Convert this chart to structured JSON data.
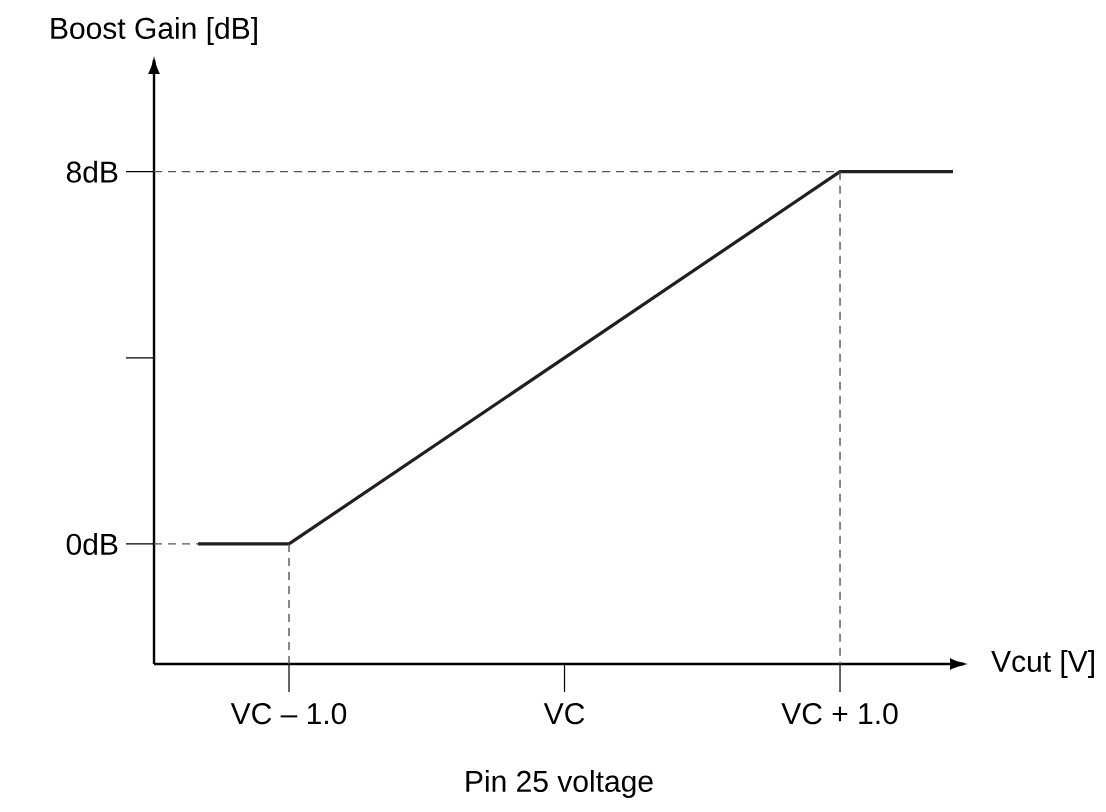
{
  "chart_data": {
    "type": "line",
    "xlabel": "Vcut [V]",
    "ylabel": "Boost Gain [dB]",
    "annotations": [
      "Pin 25 voltage"
    ],
    "xlim": [
      -1.49,
      1.45
    ],
    "ylim": [
      -2.58,
      10.4
    ],
    "xticks": [
      {
        "value": -1,
        "label": "VC – 1.0"
      },
      {
        "value": 0,
        "label": "VC"
      },
      {
        "value": 1,
        "label": "VC + 1.0"
      }
    ],
    "yticks": [
      {
        "value": 0,
        "label": "0dB"
      },
      {
        "value": 4,
        "label": null
      },
      {
        "value": 8,
        "label": "8dB"
      }
    ],
    "grid": false,
    "marker": "none",
    "series": [
      {
        "color": "#231f20",
        "line_style": "solid",
        "x": [
          -1.33,
          -1,
          1,
          1.41
        ],
        "values": [
          0,
          0,
          8,
          8
        ]
      },
      {
        "color": "#555555",
        "line_style": "dashed",
        "x": [
          -1.49,
          -1.33
        ],
        "values": [
          0,
          0
        ]
      },
      {
        "color": "#555555",
        "line_style": "dashed",
        "x": [
          -1,
          -1
        ],
        "values": [
          0,
          -2.58
        ]
      },
      {
        "color": "#555555",
        "line_style": "dashed",
        "x": [
          -1.49,
          1
        ],
        "values": [
          8,
          8
        ]
      },
      {
        "color": "#555555",
        "line_style": "dashed",
        "x": [
          1,
          1
        ],
        "values": [
          8,
          -2.58
        ]
      }
    ]
  }
}
